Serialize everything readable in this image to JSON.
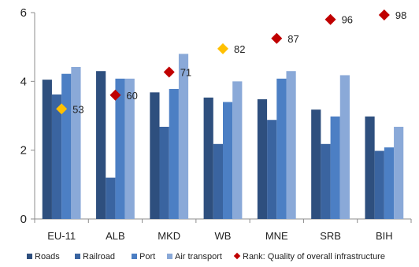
{
  "chart_data": {
    "type": "bar",
    "categories": [
      "EU-11",
      "ALB",
      "MKD",
      "WB",
      "MNE",
      "SRB",
      "BIH"
    ],
    "ylim": [
      0,
      6
    ],
    "yticks": [
      "0",
      "2",
      "4",
      "6"
    ],
    "grid": false,
    "legend_position": "bottom",
    "series": [
      {
        "name": "Roads",
        "color": "#2e4f7e",
        "values": [
          4.05,
          4.3,
          3.68,
          3.53,
          3.48,
          3.18,
          2.98
        ]
      },
      {
        "name": "Railroad",
        "color": "#3a64a0",
        "values": [
          3.62,
          1.2,
          2.68,
          2.18,
          2.88,
          2.18,
          1.98
        ]
      },
      {
        "name": "Port",
        "color": "#4c7fc4",
        "values": [
          4.22,
          4.08,
          3.78,
          3.4,
          4.08,
          2.98,
          2.08
        ]
      },
      {
        "name": "Air transport",
        "color": "#8aa9d8",
        "values": [
          4.42,
          4.08,
          4.8,
          4.0,
          4.3,
          4.18,
          2.68
        ]
      }
    ],
    "rank_series": {
      "name": "Rank: Quality of overall infrastructure",
      "color": "#c00000",
      "highlight_color": "#ffc000",
      "highlight_categories": [
        "EU-11",
        "WB"
      ],
      "positions": [
        3.2,
        3.6,
        4.27,
        4.95,
        5.25,
        5.8,
        5.93
      ],
      "labels": [
        "53",
        "60",
        "71",
        "82",
        "87",
        "96",
        "98"
      ]
    }
  },
  "legend": {
    "roads": "Roads",
    "railroad": "Railroad",
    "port": "Port",
    "air": "Air transport",
    "rank": "Rank: Quality of overall infrastructure"
  }
}
